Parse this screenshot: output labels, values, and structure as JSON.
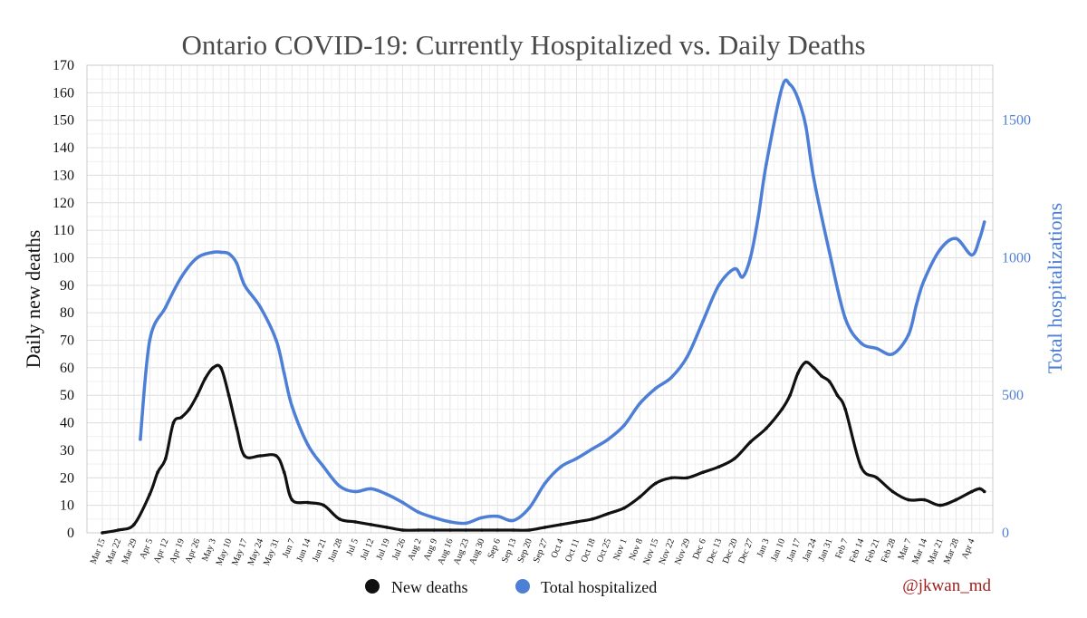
{
  "chart_data": {
    "type": "line",
    "title": "Ontario COVID-19: Currently Hospitalized vs. Daily Deaths",
    "ylabel": "Daily new deaths",
    "y2label": "Total hospitalizations",
    "ylim": [
      0,
      170
    ],
    "y2lim": [
      0,
      1700
    ],
    "yticks": [
      0,
      10,
      20,
      30,
      40,
      50,
      60,
      70,
      80,
      90,
      100,
      110,
      120,
      130,
      140,
      150,
      160,
      170
    ],
    "y2ticks": [
      0,
      500,
      1000,
      1500
    ],
    "x_tick_labels": [
      "Mar 15",
      "Mar 22",
      "Mar 29",
      "Apr 5",
      "Apr 12",
      "Apr 19",
      "Apr 26",
      "May 3",
      "May 10",
      "May 17",
      "May 24",
      "May 31",
      "Jun 7",
      "Jun 14",
      "Jun 21",
      "Jun 28",
      "Jul 5",
      "Jul 12",
      "Jul 19",
      "Jul 26",
      "Aug 2",
      "Aug 9",
      "Aug 16",
      "Aug 23",
      "Aug 30",
      "Sep 6",
      "Sep 13",
      "Sep 20",
      "Sep 27",
      "Oct 4",
      "Oct 11",
      "Oct 18",
      "Oct 25",
      "Nov 1",
      "Nov 8",
      "Nov 15",
      "Nov 22",
      "Nov 29",
      "Dec 6",
      "Dec 13",
      "Dec 20",
      "Dec 27",
      "Jan 3",
      "Jan 10",
      "Jan 17",
      "Jan 24",
      "Jan 31",
      "Feb 7",
      "Feb 14",
      "Feb 21",
      "Feb 28",
      "Mar 7",
      "Mar 14",
      "Mar 21",
      "Mar 28",
      "Apr 4"
    ],
    "legend": [
      {
        "label": "New deaths",
        "color": "#111111"
      },
      {
        "label": "Total hospitalized",
        "color": "#4e7fd6"
      }
    ],
    "credit": "@jkwan_md",
    "grid": true,
    "series": [
      {
        "name": "Total hospitalized",
        "axis": "right",
        "color": "#4e7fd6",
        "x_week": [
          2.4,
          3,
          4,
          5,
          6,
          7,
          7.5,
          8,
          8.5,
          9,
          10,
          11,
          11.5,
          12,
          13,
          14,
          15,
          16,
          17,
          18,
          19,
          20,
          21,
          22,
          23,
          24,
          25,
          26,
          27,
          28,
          29,
          30,
          31,
          32,
          33,
          34,
          35,
          36,
          37,
          38,
          39,
          40,
          40.5,
          41,
          41.5,
          42,
          43,
          43.5,
          44,
          44.5,
          45,
          46,
          47,
          48,
          49,
          50,
          51,
          51.5,
          52,
          53,
          54,
          55,
          55.5,
          55.8
        ],
        "values": [
          340,
          700,
          820,
          930,
          1000,
          1020,
          1020,
          1015,
          980,
          900,
          820,
          700,
          580,
          460,
          320,
          240,
          170,
          150,
          160,
          140,
          110,
          75,
          55,
          40,
          35,
          55,
          60,
          45,
          90,
          180,
          240,
          270,
          305,
          340,
          390,
          470,
          525,
          565,
          640,
          770,
          900,
          960,
          930,
          1000,
          1150,
          1340,
          1620,
          1630,
          1580,
          1480,
          1290,
          1020,
          780,
          690,
          670,
          650,
          720,
          830,
          920,
          1030,
          1070,
          1010,
          1070,
          1130
        ]
      },
      {
        "name": "New deaths",
        "axis": "left",
        "color": "#111111",
        "x_week": [
          0,
          1,
          2,
          3,
          3.5,
          4,
          4.5,
          5,
          5.5,
          6,
          6.5,
          7,
          7.5,
          8,
          8.5,
          9,
          10,
          11,
          11.5,
          12,
          13,
          14,
          15,
          16,
          17,
          18,
          19,
          20,
          21,
          22,
          23,
          24,
          25,
          26,
          27,
          28,
          29,
          30,
          31,
          32,
          33,
          34,
          35,
          36,
          37,
          38,
          39,
          40,
          41,
          42,
          43,
          43.5,
          44,
          44.5,
          45,
          45.5,
          46,
          46.5,
          47,
          48,
          49,
          50,
          51,
          52,
          53,
          54,
          55,
          55.5,
          55.8
        ],
        "values": [
          0,
          1,
          3,
          14,
          22,
          27,
          40,
          42,
          45,
          50,
          56,
          60,
          60,
          50,
          38,
          28,
          28,
          28,
          22,
          12,
          11,
          10,
          5,
          4,
          3,
          2,
          1,
          1,
          1,
          1,
          1,
          1,
          1,
          1,
          1,
          2,
          3,
          4,
          5,
          7,
          9,
          13,
          18,
          20,
          20,
          22,
          24,
          27,
          33,
          38,
          45,
          50,
          58,
          62,
          60,
          57,
          55,
          50,
          45,
          24,
          20,
          15,
          12,
          12,
          10,
          12,
          15,
          16,
          15
        ]
      }
    ]
  }
}
